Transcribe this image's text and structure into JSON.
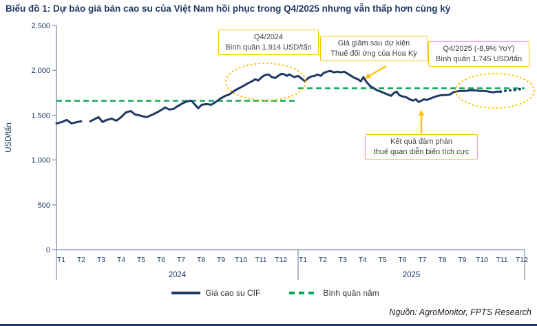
{
  "title": "Biểu đồ 1: Dự báo giá bán cao su của Việt Nam hồi phục trong Q4/2025 nhưng vẫn thấp hơn cùng kỳ",
  "source": "Nguồn: AgroMonitor, FPTS Research",
  "colors": {
    "line": "#1F3864",
    "avg": "#00A651",
    "accent": "#FFC000",
    "axis": "#7B8DA6",
    "title": "#1F3864",
    "text": "#3F3F3F"
  },
  "chart_data": {
    "type": "line",
    "ylabel": "USD/tấn",
    "ylim": [
      0,
      2500
    ],
    "yticks": [
      0,
      500,
      1000,
      1500,
      2000,
      2500
    ],
    "ytick_labels": [
      "0",
      "500",
      "1.000",
      "1.500",
      "2.000",
      "2.500"
    ],
    "months": [
      "T1",
      "T2",
      "T3",
      "T4",
      "T5",
      "T6",
      "T7",
      "T8",
      "T9",
      "T10",
      "T11",
      "T12"
    ],
    "years": [
      "2024",
      "2025"
    ],
    "x_unit": "months from start of T1/2024 (tick Tk centered at k-0.5)",
    "legend": [
      {
        "label": "Giá cao su CIF",
        "style": "solid"
      },
      {
        "label": "Bình quân năm",
        "style": "dashed"
      }
    ],
    "price_series_name": "Giá cao su CIF",
    "price_segments": [
      [
        [
          0,
          1408
        ],
        [
          0.27,
          1423
        ],
        [
          0.51,
          1446
        ],
        [
          0.75,
          1408
        ],
        [
          1.03,
          1423
        ],
        [
          1.23,
          1431
        ]
      ],
      [
        [
          1.68,
          1431
        ],
        [
          1.88,
          1454
        ],
        [
          2.09,
          1477
        ],
        [
          2.29,
          1423
        ],
        [
          2.5,
          1446
        ],
        [
          2.74,
          1462
        ],
        [
          2.97,
          1438
        ],
        [
          3.21,
          1477
        ],
        [
          3.45,
          1531
        ],
        [
          3.69,
          1546
        ],
        [
          3.9,
          1508
        ],
        [
          4.21,
          1492
        ],
        [
          4.48,
          1477
        ],
        [
          4.79,
          1508
        ],
        [
          5.06,
          1538
        ],
        [
          5.4,
          1585
        ],
        [
          5.61,
          1562
        ],
        [
          5.81,
          1569
        ],
        [
          6.02,
          1600
        ],
        [
          6.26,
          1631
        ],
        [
          6.5,
          1654
        ],
        [
          6.7,
          1662
        ],
        [
          6.91,
          1608
        ],
        [
          7.04,
          1577
        ],
        [
          7.21,
          1615
        ],
        [
          7.45,
          1623
        ],
        [
          7.69,
          1615
        ],
        [
          7.9,
          1646
        ],
        [
          8.14,
          1685
        ],
        [
          8.38,
          1715
        ],
        [
          8.58,
          1731
        ],
        [
          8.82,
          1769
        ],
        [
          9.06,
          1800
        ],
        [
          9.26,
          1823
        ],
        [
          9.5,
          1854
        ],
        [
          9.71,
          1877
        ],
        [
          9.88,
          1900
        ],
        [
          10.02,
          1885
        ],
        [
          10.19,
          1923
        ],
        [
          10.36,
          1946
        ],
        [
          10.53,
          1954
        ],
        [
          10.7,
          1923
        ],
        [
          10.87,
          1915
        ],
        [
          11.01,
          1938
        ],
        [
          11.18,
          1962
        ],
        [
          11.32,
          1954
        ],
        [
          11.45,
          1938
        ],
        [
          11.56,
          1954
        ],
        [
          11.69,
          1938
        ],
        [
          11.83,
          1923
        ],
        [
          12,
          1938
        ],
        [
          12.18,
          1908
        ],
        [
          12.36,
          1877
        ],
        [
          12.51,
          1908
        ],
        [
          12.69,
          1931
        ],
        [
          12.88,
          1938
        ],
        [
          13.02,
          1954
        ],
        [
          13.2,
          1938
        ],
        [
          13.35,
          1969
        ],
        [
          13.53,
          1985
        ],
        [
          13.71,
          1992
        ],
        [
          13.9,
          1977
        ],
        [
          14.08,
          1985
        ],
        [
          14.26,
          1977
        ],
        [
          14.44,
          1985
        ],
        [
          14.63,
          1962
        ],
        [
          14.81,
          1938
        ],
        [
          14.99,
          1915
        ],
        [
          15.17,
          1900
        ],
        [
          15.32,
          1877
        ],
        [
          15.46,
          1923
        ],
        [
          15.65,
          1862
        ],
        [
          15.83,
          1823
        ],
        [
          16.01,
          1800
        ],
        [
          16.19,
          1777
        ],
        [
          16.38,
          1762
        ],
        [
          16.56,
          1746
        ],
        [
          16.74,
          1731
        ],
        [
          16.92,
          1715
        ],
        [
          17.07,
          1746
        ],
        [
          17.22,
          1762
        ],
        [
          17.36,
          1723
        ],
        [
          17.54,
          1708
        ],
        [
          17.73,
          1700
        ],
        [
          17.91,
          1677
        ],
        [
          18.09,
          1662
        ],
        [
          18.24,
          1677
        ],
        [
          18.38,
          1646
        ],
        [
          18.53,
          1662
        ],
        [
          18.67,
          1677
        ],
        [
          18.82,
          1669
        ],
        [
          19,
          1685
        ],
        [
          19.18,
          1700
        ],
        [
          19.4,
          1715
        ],
        [
          19.62,
          1723
        ],
        [
          19.84,
          1723
        ],
        [
          20.06,
          1731
        ],
        [
          20.21,
          1754
        ],
        [
          20.35,
          1762
        ],
        [
          20.57,
          1769
        ],
        [
          20.83,
          1769
        ],
        [
          21.08,
          1777
        ],
        [
          21.37,
          1777
        ],
        [
          21.63,
          1769
        ],
        [
          21.88,
          1769
        ],
        [
          22.1,
          1762
        ],
        [
          22.32,
          1754
        ],
        [
          22.54,
          1762
        ],
        [
          22.72,
          1762
        ]
      ]
    ],
    "forecast_points": [
      [
        22.72,
        1762
      ],
      [
        22.94,
        1769
      ],
      [
        23.16,
        1777
      ],
      [
        23.38,
        1777
      ],
      [
        23.6,
        1785
      ],
      [
        23.82,
        1792
      ]
    ],
    "averages": [
      {
        "year": "2024",
        "value": 1660,
        "span": [
          0,
          12
        ]
      },
      {
        "year": "2025",
        "value": 1800,
        "span": [
          12,
          24
        ]
      }
    ],
    "annotations": {
      "q4_2024": {
        "lines": [
          "Q4/2024",
          "Bình quân 1.914 USD/tấn"
        ]
      },
      "tariff": {
        "lines": [
          "Giá giảm sau dự kiện",
          "Thuế đối ứng của Hoa Kỳ"
        ]
      },
      "q4_2025": {
        "lines": [
          "Q4/2025 (-8,9% YoY)",
          "Bình quân 1.745 USD/tấn"
        ]
      },
      "negotiation": {
        "lines": [
          "Kết quả đàm phán",
          "thuế quan diễn biến tích cực"
        ]
      }
    }
  }
}
